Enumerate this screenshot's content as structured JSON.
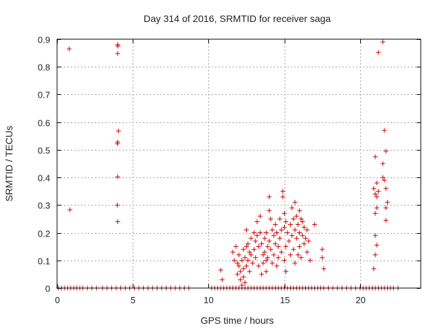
{
  "chart_data": {
    "type": "scatter",
    "title": "Day 314 of 2016, SRMTID for receiver saga",
    "xlabel": "GPS time / hours",
    "ylabel": "SRMTID / TECUs",
    "xlim": [
      0,
      24
    ],
    "ylim": [
      0,
      0.9
    ],
    "xticks": [
      0,
      5,
      10,
      15,
      20
    ],
    "yticks": [
      0,
      0.1,
      0.2,
      0.3,
      0.4,
      0.5,
      0.6,
      0.7,
      0.8,
      0.9
    ],
    "grid": true,
    "marker": "+",
    "series": [
      {
        "name": "SRMTID",
        "color": "#cc0000",
        "points": [
          [
            0.8,
            0.865
          ],
          [
            0.85,
            0.283
          ],
          [
            4.0,
            0.88
          ],
          [
            4.02,
            0.875
          ],
          [
            4.0,
            0.848
          ],
          [
            4.05,
            0.568
          ],
          [
            4.0,
            0.528
          ],
          [
            3.98,
            0.522
          ],
          [
            4.0,
            0.402
          ],
          [
            3.97,
            0.3
          ],
          [
            4.0,
            0.24
          ],
          [
            10.8,
            0.065
          ],
          [
            10.9,
            0.03
          ],
          [
            11.6,
            0.13
          ],
          [
            11.7,
            0.1
          ],
          [
            11.8,
            0.15
          ],
          [
            11.9,
            0.09
          ],
          [
            11.9,
            0.05
          ],
          [
            12.0,
            0.12
          ],
          [
            12.0,
            0.08
          ],
          [
            12.1,
            0.06
          ],
          [
            12.1,
            0.03
          ],
          [
            12.2,
            0.1
          ],
          [
            12.2,
            0.01
          ],
          [
            12.3,
            0.14
          ],
          [
            12.3,
            0.07
          ],
          [
            12.3,
            0.04
          ],
          [
            12.4,
            0.11
          ],
          [
            12.4,
            0.02
          ],
          [
            12.5,
            0.21
          ],
          [
            12.5,
            0.15
          ],
          [
            12.5,
            0.08
          ],
          [
            12.6,
            0.16
          ],
          [
            12.6,
            0.1
          ],
          [
            12.7,
            0.13
          ],
          [
            12.7,
            0.06
          ],
          [
            12.8,
            0.18
          ],
          [
            12.8,
            0.12
          ],
          [
            12.9,
            0.09
          ],
          [
            13.0,
            0.2
          ],
          [
            13.0,
            0.14
          ],
          [
            13.1,
            0.17
          ],
          [
            13.1,
            0.11
          ],
          [
            13.2,
            0.24
          ],
          [
            13.2,
            0.19
          ],
          [
            13.3,
            0.15
          ],
          [
            13.3,
            0.08
          ],
          [
            13.4,
            0.26
          ],
          [
            13.4,
            0.2
          ],
          [
            13.5,
            0.16
          ],
          [
            13.5,
            0.05
          ],
          [
            13.6,
            0.12
          ],
          [
            13.6,
            0.09
          ],
          [
            13.7,
            0.18
          ],
          [
            13.7,
            0.13
          ],
          [
            13.8,
            0.2
          ],
          [
            13.8,
            0.1
          ],
          [
            13.8,
            0.06
          ],
          [
            13.9,
            0.15
          ],
          [
            13.9,
            0.11
          ],
          [
            14.0,
            0.33
          ],
          [
            14.0,
            0.28
          ],
          [
            14.0,
            0.17
          ],
          [
            14.1,
            0.25
          ],
          [
            14.1,
            0.14
          ],
          [
            14.2,
            0.21
          ],
          [
            14.2,
            0.09
          ],
          [
            14.3,
            0.19
          ],
          [
            14.3,
            0.12
          ],
          [
            14.4,
            0.23
          ],
          [
            14.4,
            0.16
          ],
          [
            14.5,
            0.2
          ],
          [
            14.5,
            0.08
          ],
          [
            14.6,
            0.15
          ],
          [
            14.6,
            0.11
          ],
          [
            14.7,
            0.25
          ],
          [
            14.7,
            0.18
          ],
          [
            14.8,
            0.21
          ],
          [
            14.8,
            0.13
          ],
          [
            14.9,
            0.35
          ],
          [
            14.9,
            0.33
          ],
          [
            15.0,
            0.27
          ],
          [
            15.0,
            0.22
          ],
          [
            15.0,
            0.1
          ],
          [
            15.1,
            0.24
          ],
          [
            15.1,
            0.15
          ],
          [
            15.1,
            0.06
          ],
          [
            15.2,
            0.2
          ],
          [
            15.3,
            0.17
          ],
          [
            15.4,
            0.23
          ],
          [
            15.4,
            0.12
          ],
          [
            15.5,
            0.29
          ],
          [
            15.5,
            0.19
          ],
          [
            15.6,
            0.25
          ],
          [
            15.6,
            0.14
          ],
          [
            15.7,
            0.31
          ],
          [
            15.7,
            0.21
          ],
          [
            15.7,
            0.09
          ],
          [
            15.8,
            0.26
          ],
          [
            15.8,
            0.18
          ],
          [
            15.9,
            0.23
          ],
          [
            15.9,
            0.12
          ],
          [
            16.0,
            0.28
          ],
          [
            16.0,
            0.2
          ],
          [
            16.0,
            0.15
          ],
          [
            16.1,
            0.25
          ],
          [
            16.1,
            0.11
          ],
          [
            16.2,
            0.24
          ],
          [
            16.2,
            0.19
          ],
          [
            16.3,
            0.22
          ],
          [
            16.3,
            0.16
          ],
          [
            16.4,
            0.18
          ],
          [
            16.5,
            0.21
          ],
          [
            16.5,
            0.13
          ],
          [
            16.6,
            0.17
          ],
          [
            16.7,
            0.1
          ],
          [
            17.0,
            0.23
          ],
          [
            17.5,
            0.14
          ],
          [
            17.5,
            0.11
          ],
          [
            17.6,
            0.07
          ],
          [
            20.9,
            0.36
          ],
          [
            20.9,
            0.07
          ],
          [
            21.0,
            0.475
          ],
          [
            21.0,
            0.34
          ],
          [
            21.0,
            0.27
          ],
          [
            21.0,
            0.19
          ],
          [
            21.0,
            0.12
          ],
          [
            21.1,
            0.38
          ],
          [
            21.1,
            0.33
          ],
          [
            21.1,
            0.29
          ],
          [
            21.1,
            0.155
          ],
          [
            21.2,
            0.852
          ],
          [
            21.2,
            0.35
          ],
          [
            21.5,
            0.89
          ],
          [
            21.5,
            0.45
          ],
          [
            21.5,
            0.4
          ],
          [
            21.6,
            0.57
          ],
          [
            21.6,
            0.39
          ],
          [
            21.7,
            0.495
          ],
          [
            21.7,
            0.36
          ],
          [
            21.7,
            0.29
          ],
          [
            21.7,
            0.245
          ],
          [
            21.8,
            0.31
          ]
        ],
        "zero_points_x": [
          0.1,
          0.3,
          0.5,
          0.7,
          0.9,
          1.1,
          1.3,
          1.5,
          1.7,
          2.0,
          2.3,
          2.6,
          3.0,
          3.3,
          3.6,
          3.9,
          4.2,
          4.5,
          4.8,
          5.1,
          5.4,
          5.7,
          6.0,
          6.3,
          6.6,
          6.9,
          7.2,
          7.5,
          7.8,
          8.1,
          8.4,
          8.7,
          10.2,
          10.4,
          10.6,
          10.8,
          11.0,
          11.2,
          11.4,
          11.6,
          11.8,
          12.0,
          12.2,
          12.4,
          12.6,
          12.8,
          13.0,
          13.2,
          13.4,
          13.6,
          13.8,
          14.0,
          14.2,
          14.4,
          14.6,
          14.8,
          15.0,
          15.2,
          15.4,
          15.6,
          15.8,
          16.0,
          16.2,
          16.4,
          16.6,
          16.8,
          17.0,
          17.2,
          17.4,
          17.6,
          17.9,
          18.2,
          18.5,
          18.8,
          19.1,
          19.4,
          19.7,
          20.0,
          20.2,
          20.4,
          20.6,
          20.8,
          21.0,
          21.2,
          21.4,
          21.6,
          21.8,
          22.0,
          22.2,
          22.5
        ]
      }
    ]
  }
}
